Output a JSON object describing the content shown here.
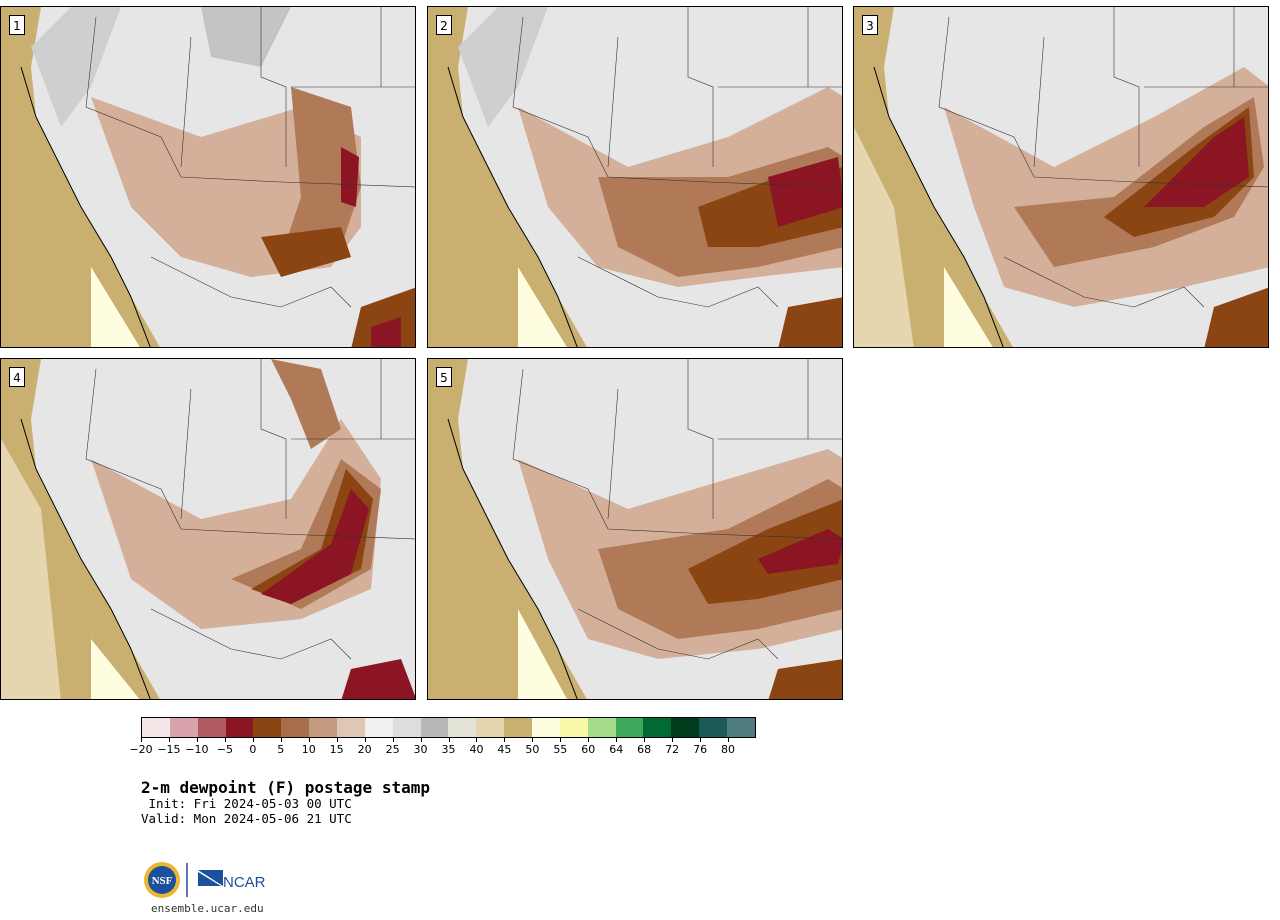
{
  "panels": [
    {
      "label": "1"
    },
    {
      "label": "2"
    },
    {
      "label": "3"
    },
    {
      "label": "4"
    },
    {
      "label": "5"
    }
  ],
  "colorbar": {
    "colors": [
      "#f5e6e8",
      "#d8a3aa",
      "#b05a62",
      "#8b1523",
      "#8b4513",
      "#a86e4b",
      "#c49a80",
      "#e0c6b5",
      "#f0f0f0",
      "#dddddd",
      "#b8b8b8",
      "#e2e2d6",
      "#e6d6b0",
      "#c9b070",
      "#fffde0",
      "#f8f8a8",
      "#a4dc8c",
      "#3caa5a",
      "#006a32",
      "#003c1c",
      "#1c5a5a",
      "#4e7c80"
    ],
    "tick_labels": [
      "−20",
      "−15",
      "−10",
      "−5",
      "0",
      "5",
      "10",
      "15",
      "20",
      "25",
      "30",
      "35",
      "40",
      "45",
      "50",
      "55",
      "60",
      "64",
      "68",
      "72",
      "76",
      "80"
    ]
  },
  "title": "2-m dewpoint (F) postage stamp",
  "init": " Init: Fri 2024-05-03 00 UTC",
  "valid": "Valid: Mon 2024-05-06 21 UTC",
  "logos": {
    "nsf": "NSF",
    "ncar": "NCAR"
  },
  "site": "ensemble.ucar.edu"
}
